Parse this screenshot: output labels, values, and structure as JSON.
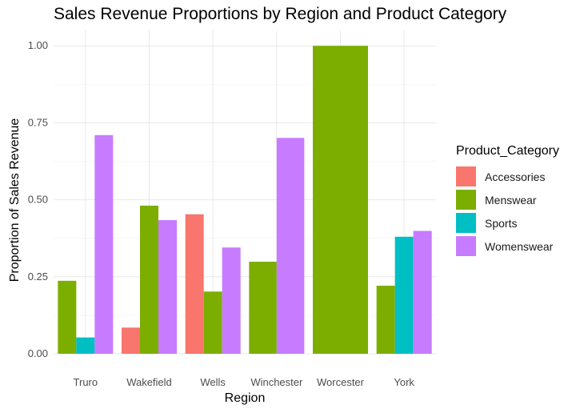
{
  "chart_data": {
    "type": "bar",
    "title": "Sales Revenue Proportions by Region and Product Category",
    "xlabel": "Region",
    "ylabel": "Proportion of Sales Revenue",
    "ylim": [
      0,
      1.05
    ],
    "yticks": [
      "0.00",
      "0.25",
      "0.50",
      "0.75",
      "1.00"
    ],
    "grid": true,
    "legend_title": "Product_Category",
    "legend_position": "right",
    "categories": [
      "Truro",
      "Wakefield",
      "Wells",
      "Winchester",
      "Worcester",
      "York"
    ],
    "series": [
      {
        "name": "Accessories",
        "color": "#F8766D"
      },
      {
        "name": "Menswear",
        "color": "#7CAE00"
      },
      {
        "name": "Sports",
        "color": "#00BFC4"
      },
      {
        "name": "Womenswear",
        "color": "#C77CFF"
      }
    ],
    "bars": [
      {
        "category": "Truro",
        "series": [
          "Menswear",
          "Sports",
          "Womenswear"
        ],
        "values": [
          0.237,
          0.053,
          0.71
        ]
      },
      {
        "category": "Wakefield",
        "series": [
          "Accessories",
          "Menswear",
          "Womenswear"
        ],
        "values": [
          0.085,
          0.481,
          0.434
        ]
      },
      {
        "category": "Wells",
        "series": [
          "Accessories",
          "Menswear",
          "Womenswear"
        ],
        "values": [
          0.453,
          0.202,
          0.345
        ]
      },
      {
        "category": "Winchester",
        "series": [
          "Menswear",
          "Womenswear"
        ],
        "values": [
          0.299,
          0.701
        ]
      },
      {
        "category": "Worcester",
        "series": [
          "Menswear"
        ],
        "values": [
          1.0
        ]
      },
      {
        "category": "York",
        "series": [
          "Menswear",
          "Sports",
          "Womenswear"
        ],
        "values": [
          0.221,
          0.38,
          0.399
        ]
      }
    ]
  }
}
